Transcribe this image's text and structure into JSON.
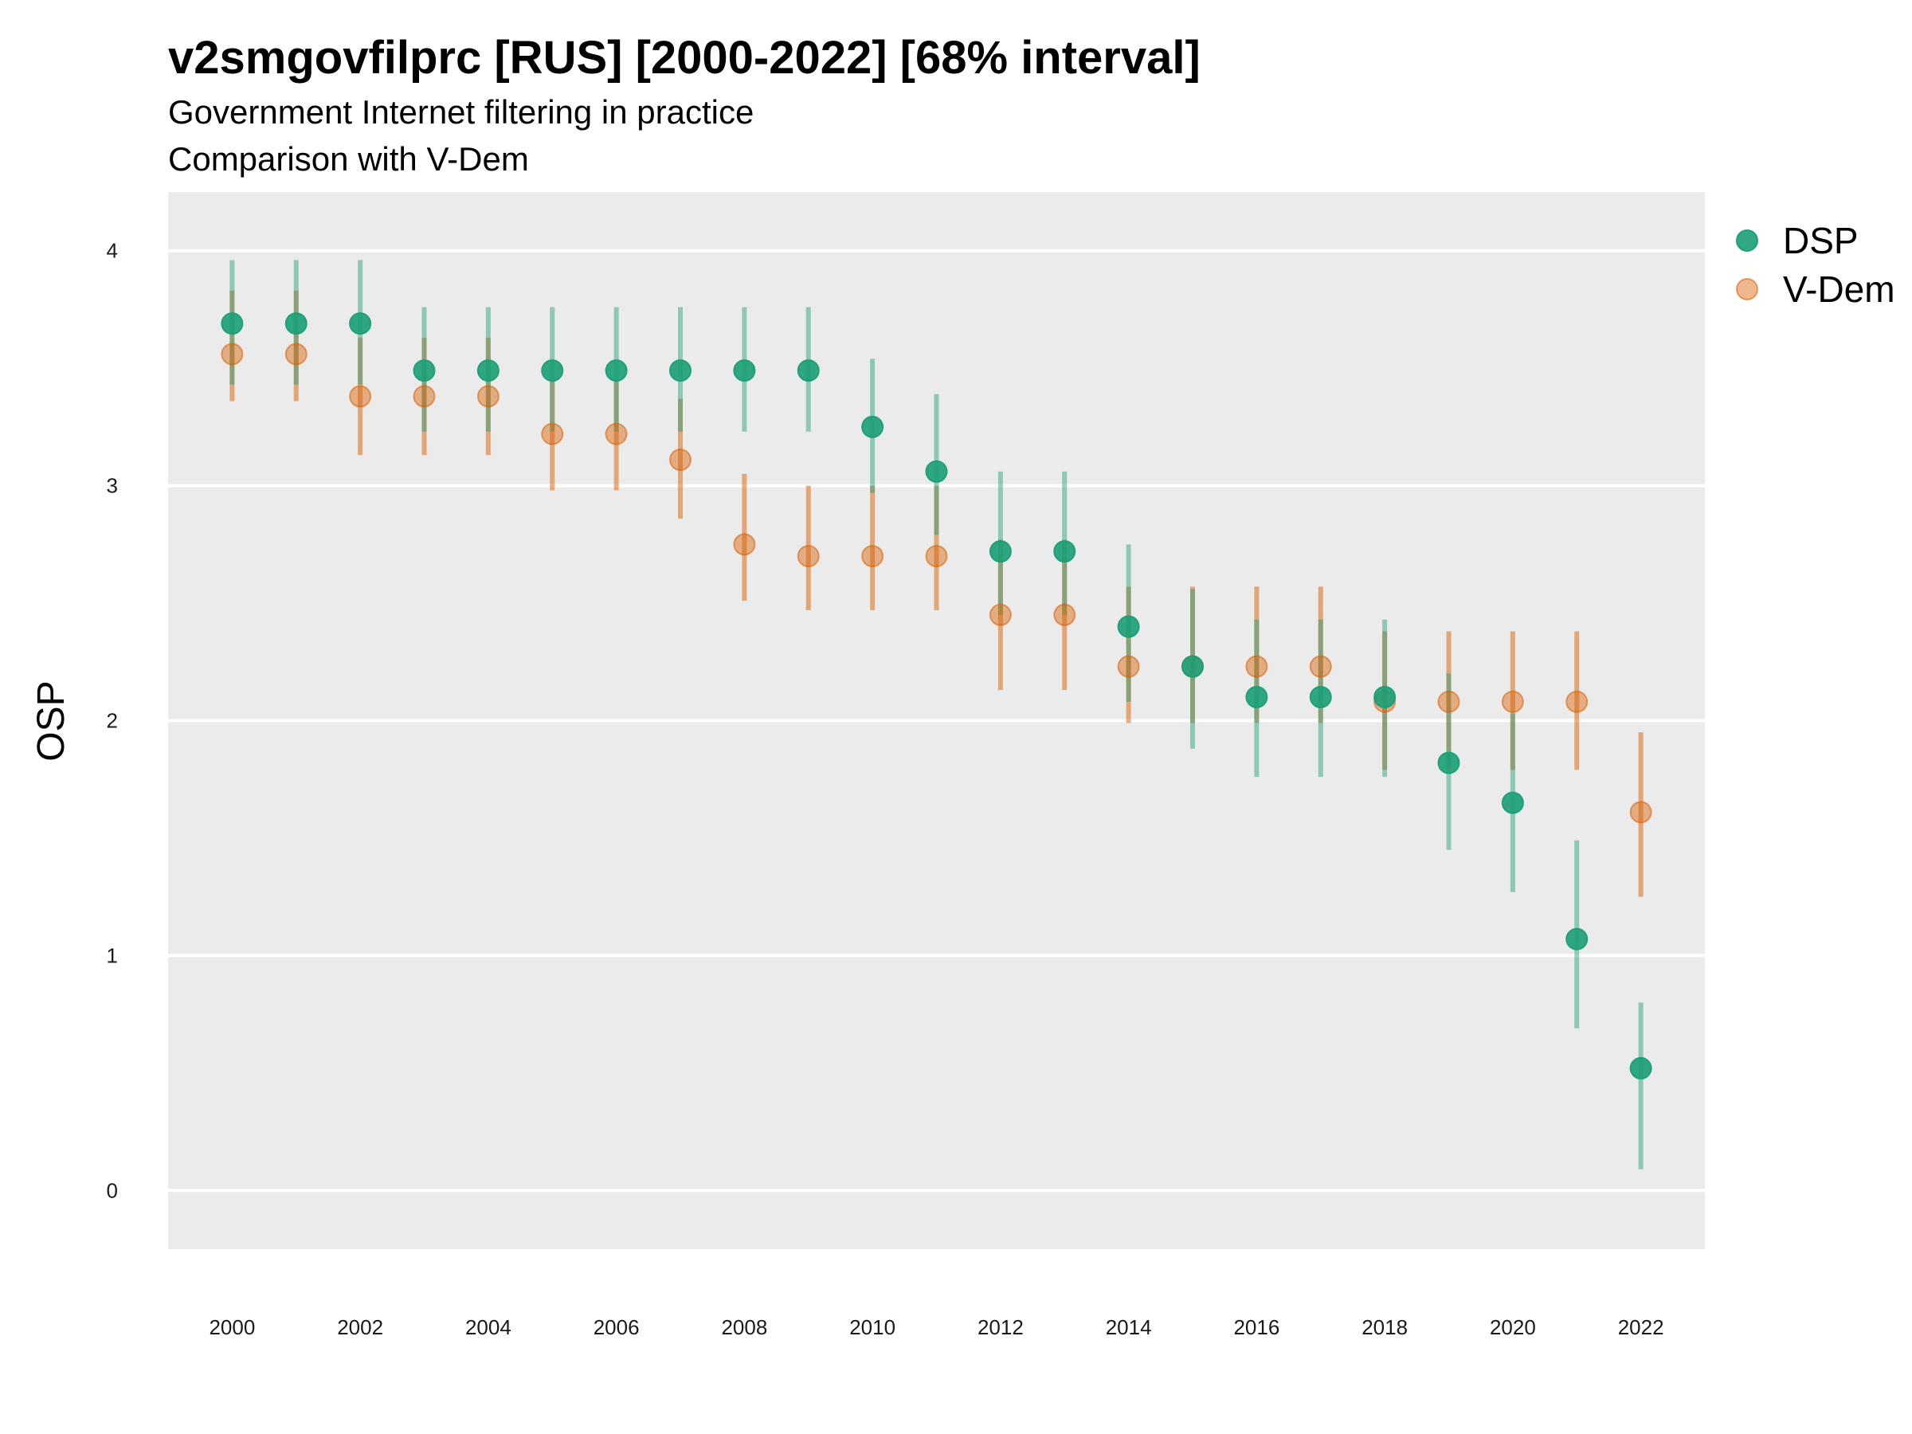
{
  "chart_data": {
    "type": "scatter",
    "title": "v2smgovfilprc [RUS] [2000-2022] [68% interval]",
    "subtitle_lines": [
      "Government Internet filtering in practice",
      "Comparison with V-Dem"
    ],
    "xlabel": "",
    "ylabel": "OSP",
    "xlim": [
      1999,
      2023
    ],
    "ylim": [
      -0.25,
      4.25
    ],
    "x_ticks": [
      2000,
      2002,
      2004,
      2006,
      2008,
      2010,
      2012,
      2014,
      2016,
      2018,
      2020,
      2022
    ],
    "y_ticks": [
      0,
      1,
      2,
      3,
      4
    ],
    "grid": true,
    "legend_position": "right",
    "x": [
      2000,
      2001,
      2002,
      2003,
      2004,
      2005,
      2006,
      2007,
      2008,
      2009,
      2010,
      2011,
      2012,
      2013,
      2014,
      2015,
      2016,
      2017,
      2018,
      2019,
      2020,
      2021,
      2022
    ],
    "series": [
      {
        "name": "DSP",
        "color": "#1b9e77",
        "values": [
          3.69,
          3.69,
          3.69,
          3.49,
          3.49,
          3.49,
          3.49,
          3.49,
          3.49,
          3.49,
          3.25,
          3.06,
          2.72,
          2.72,
          2.4,
          2.23,
          2.1,
          2.1,
          2.1,
          1.82,
          1.65,
          1.07,
          0.52
        ],
        "lower": [
          3.43,
          3.43,
          3.43,
          3.23,
          3.23,
          3.23,
          3.23,
          3.23,
          3.23,
          3.23,
          2.97,
          2.79,
          2.45,
          2.45,
          2.08,
          1.88,
          1.76,
          1.76,
          1.76,
          1.45,
          1.27,
          0.69,
          0.09
        ],
        "upper": [
          3.96,
          3.96,
          3.96,
          3.76,
          3.76,
          3.76,
          3.76,
          3.76,
          3.76,
          3.76,
          3.54,
          3.39,
          3.06,
          3.06,
          2.75,
          2.56,
          2.43,
          2.43,
          2.43,
          2.2,
          2.03,
          1.49,
          0.8
        ]
      },
      {
        "name": "V-Dem",
        "color": "#d95f02",
        "values": [
          3.56,
          3.56,
          3.38,
          3.38,
          3.38,
          3.22,
          3.22,
          3.11,
          2.75,
          2.7,
          2.7,
          2.7,
          2.45,
          2.45,
          2.23,
          2.23,
          2.23,
          2.23,
          2.08,
          2.08,
          2.08,
          2.08,
          1.61
        ],
        "lower": [
          3.36,
          3.36,
          3.13,
          3.13,
          3.13,
          2.98,
          2.98,
          2.86,
          2.51,
          2.47,
          2.47,
          2.47,
          2.13,
          2.13,
          1.99,
          1.99,
          1.99,
          1.99,
          1.79,
          1.79,
          1.79,
          1.79,
          1.25
        ],
        "upper": [
          3.83,
          3.83,
          3.63,
          3.63,
          3.63,
          3.45,
          3.45,
          3.37,
          3.05,
          3.0,
          3.0,
          3.0,
          2.77,
          2.77,
          2.57,
          2.57,
          2.57,
          2.57,
          2.38,
          2.38,
          2.38,
          2.38,
          1.95
        ]
      }
    ]
  }
}
